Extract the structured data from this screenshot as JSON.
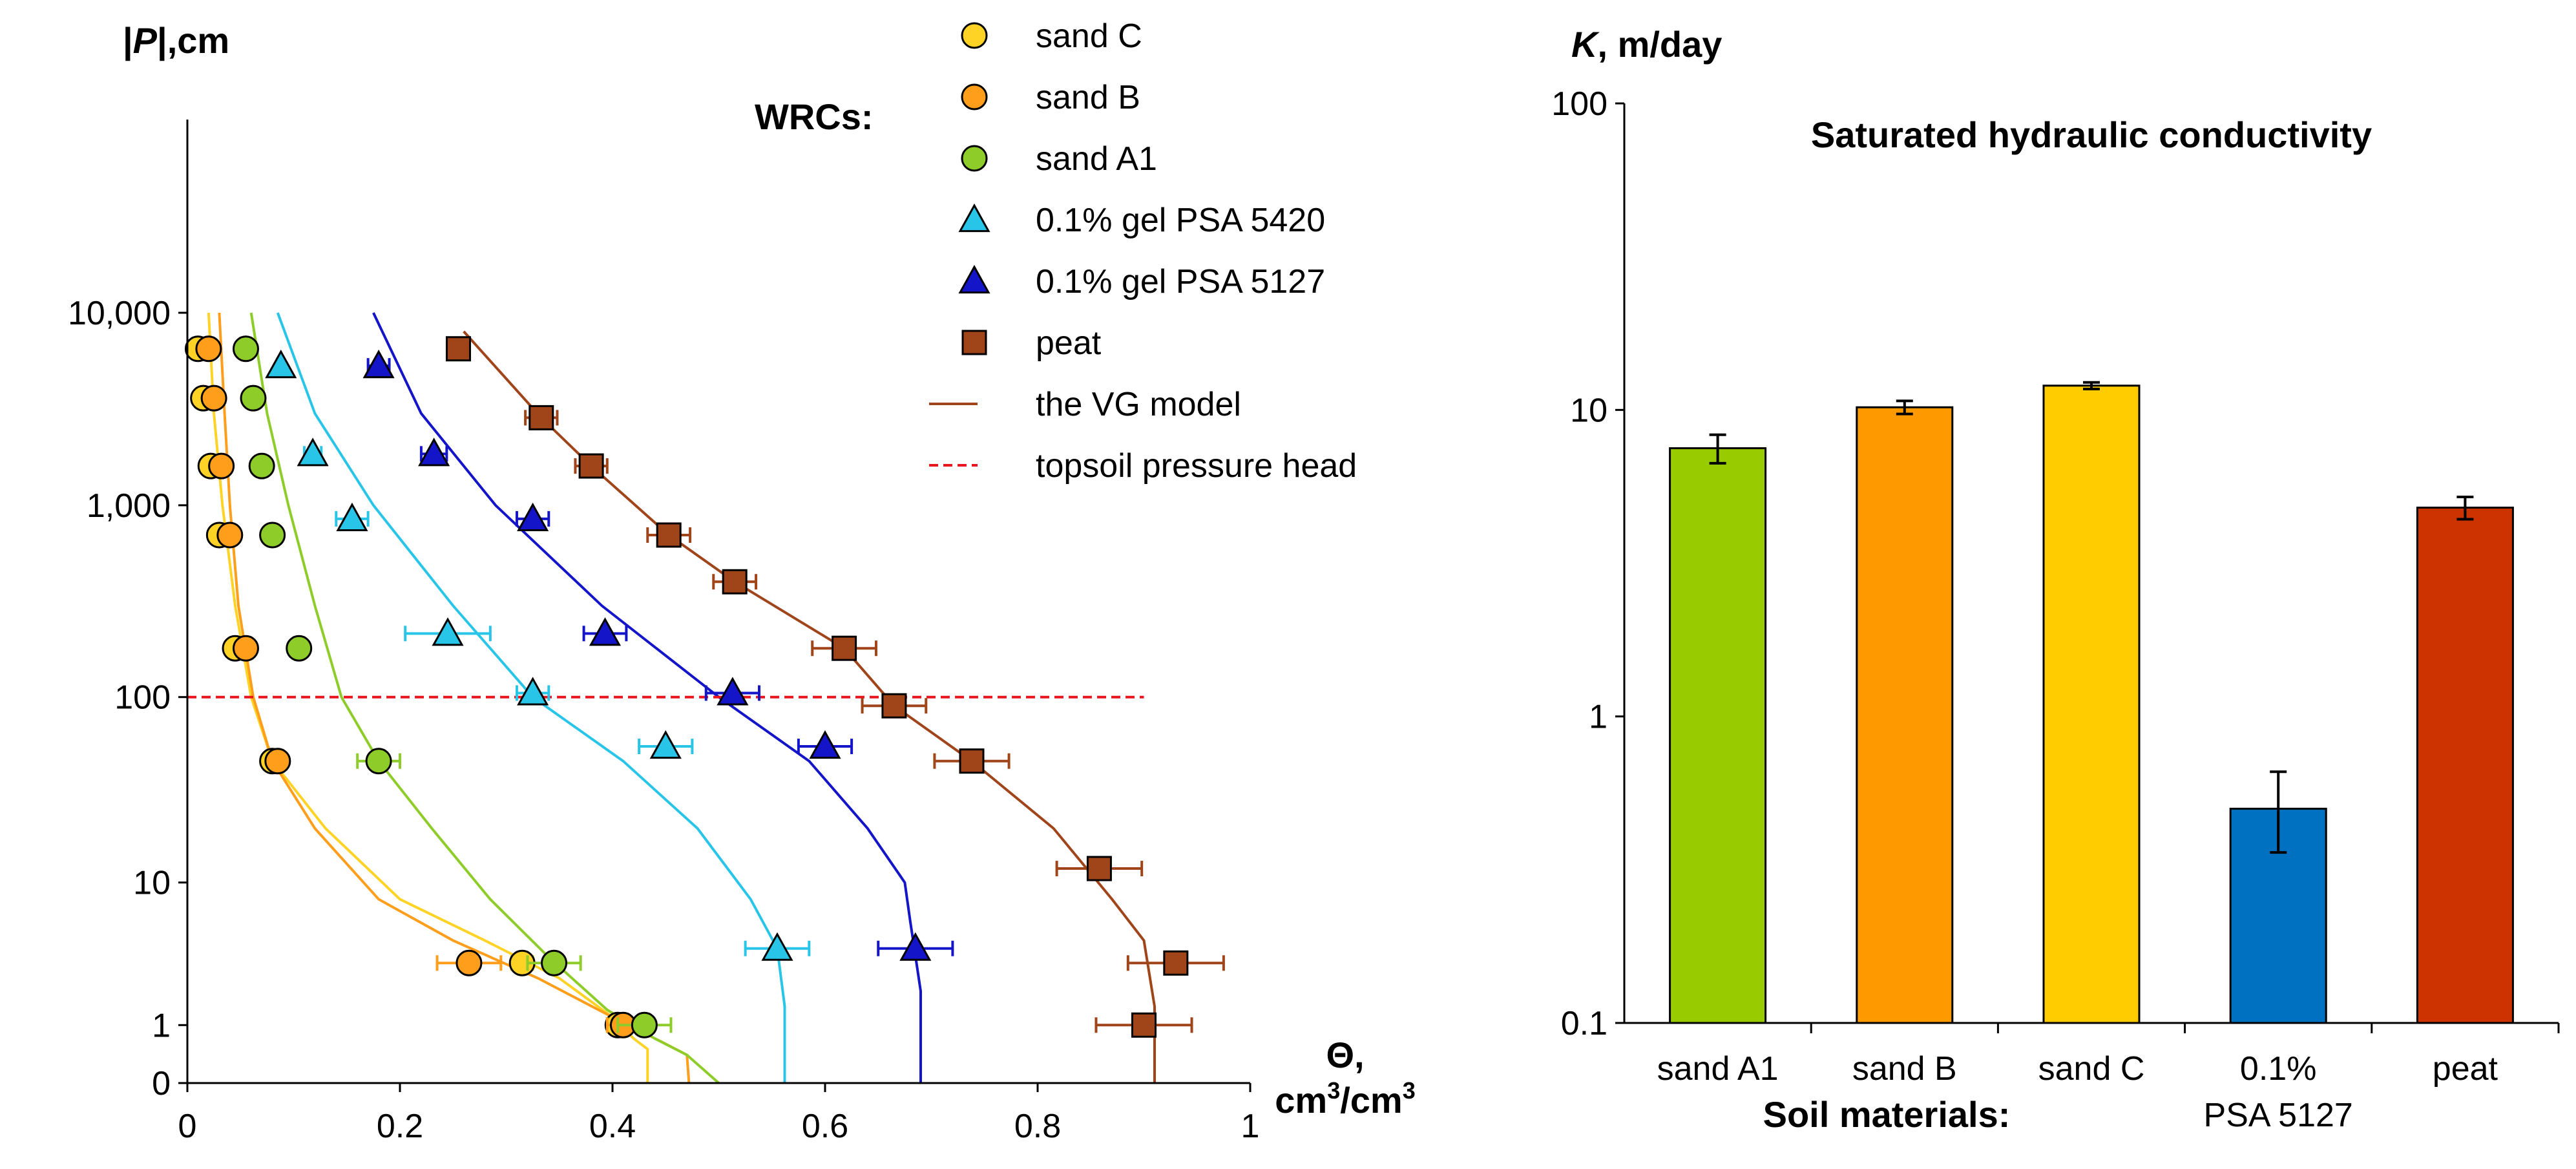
{
  "colors": {
    "sand_C": "#FFD326",
    "sand_B": "#FF9E1B",
    "sand_A1": "#8ECC2A",
    "gel_5420": "#29C5E8",
    "gel_5127": "#1414C8",
    "peat": "#A0441A",
    "vg_line": "#A0441A",
    "topsoil": "#E8141E",
    "wrcs_label": "#1C1C8C",
    "bar_sand_A1": "#99CC00",
    "bar_sand_B": "#FF9900",
    "bar_sand_C": "#FFCC00",
    "bar_psa": "#0070C0",
    "bar_peat": "#CC3300"
  },
  "chart_data": [
    {
      "type": "scatter",
      "title": "",
      "ylabel_prefix": "|",
      "ylabel_var": "P",
      "ylabel_suffix": "|,cm",
      "xlabel_var": "Θ,",
      "xlabel_unit": "cm",
      "xlabel_sup": "3",
      "xlabel_unit2": "/cm",
      "xlabel_sup2": "3",
      "annotation": "WRCs:",
      "xlim": [
        0,
        1
      ],
      "x_ticks": [
        0,
        0.2,
        0.4,
        0.6,
        0.8,
        1
      ],
      "x_tick_labels": [
        "0",
        "0.2",
        "0.4",
        "0.6",
        "0.8",
        "1"
      ],
      "y_scale": "log(|P|+1)",
      "y_ticks": [
        0,
        1,
        10,
        100,
        1000,
        10000
      ],
      "y_tick_labels": [
        "0",
        "1",
        "10",
        "100",
        "1,000",
        "10,000"
      ],
      "reference_line": {
        "name": "topsoil pressure head",
        "y": 100,
        "x_range": [
          0,
          0.9
        ]
      },
      "series": [
        {
          "name": "sand C",
          "marker": "circle",
          "color_key": "sand_C",
          "points": [
            [
              0.01,
              6500
            ],
            [
              0.015,
              3600
            ],
            [
              0.022,
              1600
            ],
            [
              0.03,
              700
            ],
            [
              0.045,
              180
            ],
            [
              0.08,
              46
            ],
            [
              0.315,
              3.2
            ],
            [
              0.405,
              1
            ]
          ],
          "xerr": [
            0,
            0,
            0,
            0,
            0,
            0.005,
            0.01,
            0.01
          ]
        },
        {
          "name": "sand B",
          "marker": "circle",
          "color_key": "sand_B",
          "points": [
            [
              0.02,
              6500
            ],
            [
              0.025,
              3600
            ],
            [
              0.032,
              1600
            ],
            [
              0.04,
              700
            ],
            [
              0.055,
              180
            ],
            [
              0.085,
              46
            ],
            [
              0.265,
              3.2
            ],
            [
              0.41,
              1
            ]
          ],
          "xerr": [
            0,
            0,
            0,
            0,
            0,
            0,
            0.03,
            0.015
          ]
        },
        {
          "name": "sand A1",
          "marker": "circle",
          "color_key": "sand_A1",
          "points": [
            [
              0.055,
              6500
            ],
            [
              0.062,
              3600
            ],
            [
              0.07,
              1600
            ],
            [
              0.08,
              700
            ],
            [
              0.105,
              180
            ],
            [
              0.18,
              46
            ],
            [
              0.345,
              3.2
            ],
            [
              0.43,
              1
            ]
          ],
          "xerr": [
            0,
            0,
            0,
            0,
            0,
            0.02,
            0.025,
            0.025
          ]
        },
        {
          "name": "0.1% gel PSA 5420",
          "marker": "triangle",
          "color_key": "gel_5420",
          "points": [
            [
              0.088,
              5300
            ],
            [
              0.118,
              1850
            ],
            [
              0.155,
              850
            ],
            [
              0.245,
              215
            ],
            [
              0.325,
              105
            ],
            [
              0.45,
              55
            ],
            [
              0.555,
              4
            ]
          ],
          "xerr": [
            0,
            0.008,
            0.015,
            0.04,
            0.015,
            0.025,
            0.03
          ]
        },
        {
          "name": "0.1% gel PSA 5127",
          "marker": "triangle",
          "color_key": "gel_5127",
          "points": [
            [
              0.18,
              5300
            ],
            [
              0.232,
              1850
            ],
            [
              0.325,
              850
            ],
            [
              0.393,
              215
            ],
            [
              0.513,
              105
            ],
            [
              0.6,
              55
            ],
            [
              0.685,
              4
            ]
          ],
          "xerr": [
            0.01,
            0.012,
            0.015,
            0.02,
            0.025,
            0.025,
            0.035
          ]
        },
        {
          "name": "peat",
          "marker": "square",
          "color_key": "peat",
          "points": [
            [
              0.255,
              6500
            ],
            [
              0.333,
              2850
            ],
            [
              0.38,
              1600
            ],
            [
              0.453,
              700
            ],
            [
              0.515,
              400
            ],
            [
              0.618,
              180
            ],
            [
              0.665,
              90
            ],
            [
              0.738,
              46
            ],
            [
              0.858,
              12
            ],
            [
              0.93,
              3.2
            ],
            [
              0.9,
              1
            ]
          ],
          "xerr": [
            0.01,
            0.015,
            0.015,
            0.02,
            0.02,
            0.03,
            0.03,
            0.035,
            0.04,
            0.045,
            0.045
          ]
        }
      ],
      "curves": [
        {
          "name": "sand C VG",
          "color_key": "sand_C",
          "points": [
            [
              0.02,
              10000
            ],
            [
              0.025,
              3000
            ],
            [
              0.033,
              1000
            ],
            [
              0.045,
              300
            ],
            [
              0.06,
              100
            ],
            [
              0.08,
              46
            ],
            [
              0.13,
              20
            ],
            [
              0.2,
              8
            ],
            [
              0.28,
              4.5
            ],
            [
              0.35,
              2.5
            ],
            [
              0.4,
              1.2
            ],
            [
              0.42,
              0.7
            ],
            [
              0.433,
              0.5
            ],
            [
              0.433,
              0
            ]
          ]
        },
        {
          "name": "sand B VG",
          "color_key": "sand_B",
          "points": [
            [
              0.03,
              10000
            ],
            [
              0.035,
              3000
            ],
            [
              0.04,
              1000
            ],
            [
              0.048,
              300
            ],
            [
              0.062,
              100
            ],
            [
              0.08,
              46
            ],
            [
              0.12,
              20
            ],
            [
              0.18,
              8
            ],
            [
              0.25,
              4.5
            ],
            [
              0.33,
              2.5
            ],
            [
              0.4,
              1.2
            ],
            [
              0.445,
              0.65
            ],
            [
              0.47,
              0.4
            ],
            [
              0.472,
              0
            ]
          ]
        },
        {
          "name": "sand A1 VG",
          "color_key": "sand_A1",
          "points": [
            [
              0.06,
              10000
            ],
            [
              0.075,
              3000
            ],
            [
              0.095,
              1000
            ],
            [
              0.12,
              300
            ],
            [
              0.145,
              100
            ],
            [
              0.18,
              46
            ],
            [
              0.23,
              20
            ],
            [
              0.285,
              8
            ],
            [
              0.34,
              3.5
            ],
            [
              0.395,
              1.4
            ],
            [
              0.44,
              0.7
            ],
            [
              0.47,
              0.4
            ],
            [
              0.5,
              0
            ]
          ]
        },
        {
          "name": "gel PSA 5420 VG",
          "color_key": "gel_5420",
          "points": [
            [
              0.085,
              10000
            ],
            [
              0.12,
              3000
            ],
            [
              0.175,
              1000
            ],
            [
              0.25,
              300
            ],
            [
              0.325,
              100
            ],
            [
              0.41,
              46
            ],
            [
              0.48,
              20
            ],
            [
              0.53,
              8
            ],
            [
              0.555,
              4
            ],
            [
              0.562,
              1.5
            ],
            [
              0.562,
              0
            ]
          ]
        },
        {
          "name": "gel PSA 5127 VG",
          "color_key": "gel_5127",
          "points": [
            [
              0.175,
              10000
            ],
            [
              0.22,
              3000
            ],
            [
              0.29,
              1000
            ],
            [
              0.39,
              300
            ],
            [
              0.5,
              100
            ],
            [
              0.585,
              46
            ],
            [
              0.64,
              20
            ],
            [
              0.675,
              10
            ],
            [
              0.68,
              6
            ],
            [
              0.69,
              2
            ],
            [
              0.69,
              0
            ]
          ]
        },
        {
          "name": "peat VG",
          "color_key": "peat",
          "points": [
            [
              0.26,
              8000
            ],
            [
              0.333,
              2850
            ],
            [
              0.38,
              1600
            ],
            [
              0.453,
              700
            ],
            [
              0.515,
              400
            ],
            [
              0.618,
              180
            ],
            [
              0.665,
              90
            ],
            [
              0.738,
              46
            ],
            [
              0.815,
              20
            ],
            [
              0.87,
              8
            ],
            [
              0.9,
              4.5
            ],
            [
              0.91,
              1.5
            ],
            [
              0.91,
              0
            ]
          ]
        }
      ],
      "legend": {
        "placement": "top-right",
        "entries": [
          {
            "label": "sand C",
            "kind": "circle",
            "color_key": "sand_C"
          },
          {
            "label": "sand B",
            "kind": "circle",
            "color_key": "sand_B"
          },
          {
            "label": "sand A1",
            "kind": "circle",
            "color_key": "sand_A1"
          },
          {
            "label": "0.1% gel PSA 5420",
            "kind": "triangle",
            "color_key": "gel_5420"
          },
          {
            "label": "0.1% gel PSA 5127",
            "kind": "triangle",
            "color_key": "gel_5127"
          },
          {
            "label": "peat",
            "kind": "square",
            "color_key": "peat"
          },
          {
            "label": "the VG model",
            "kind": "line",
            "color_key": "vg_line"
          },
          {
            "label": "topsoil pressure head",
            "kind": "dash",
            "color_key": "topsoil"
          }
        ]
      }
    },
    {
      "type": "bar",
      "title": "Saturated hydraulic conductivity",
      "ylabel_var": "K",
      "ylabel_suffix": ", m/day",
      "xlabel": "Soil materials:",
      "y_scale": "log",
      "ylim": [
        0.1,
        100
      ],
      "y_ticks": [
        0.1,
        1,
        10,
        100
      ],
      "y_tick_labels": [
        "0.1",
        "1",
        "10",
        "100"
      ],
      "categories": [
        {
          "line1": "sand A1",
          "line2": ""
        },
        {
          "line1": "sand B",
          "line2": ""
        },
        {
          "line1": "sand C",
          "line2": ""
        },
        {
          "line1": "0.1%",
          "line2": "PSA 5127"
        },
        {
          "line1": "peat",
          "line2": ""
        }
      ],
      "values": [
        7.5,
        10.2,
        12.0,
        0.5,
        4.8
      ],
      "err_low": [
        6.7,
        9.7,
        11.7,
        0.36,
        4.4
      ],
      "err_high": [
        8.3,
        10.7,
        12.3,
        0.66,
        5.2
      ],
      "bar_color_keys": [
        "bar_sand_A1",
        "bar_sand_B",
        "bar_sand_C",
        "bar_psa",
        "bar_peat"
      ]
    }
  ]
}
